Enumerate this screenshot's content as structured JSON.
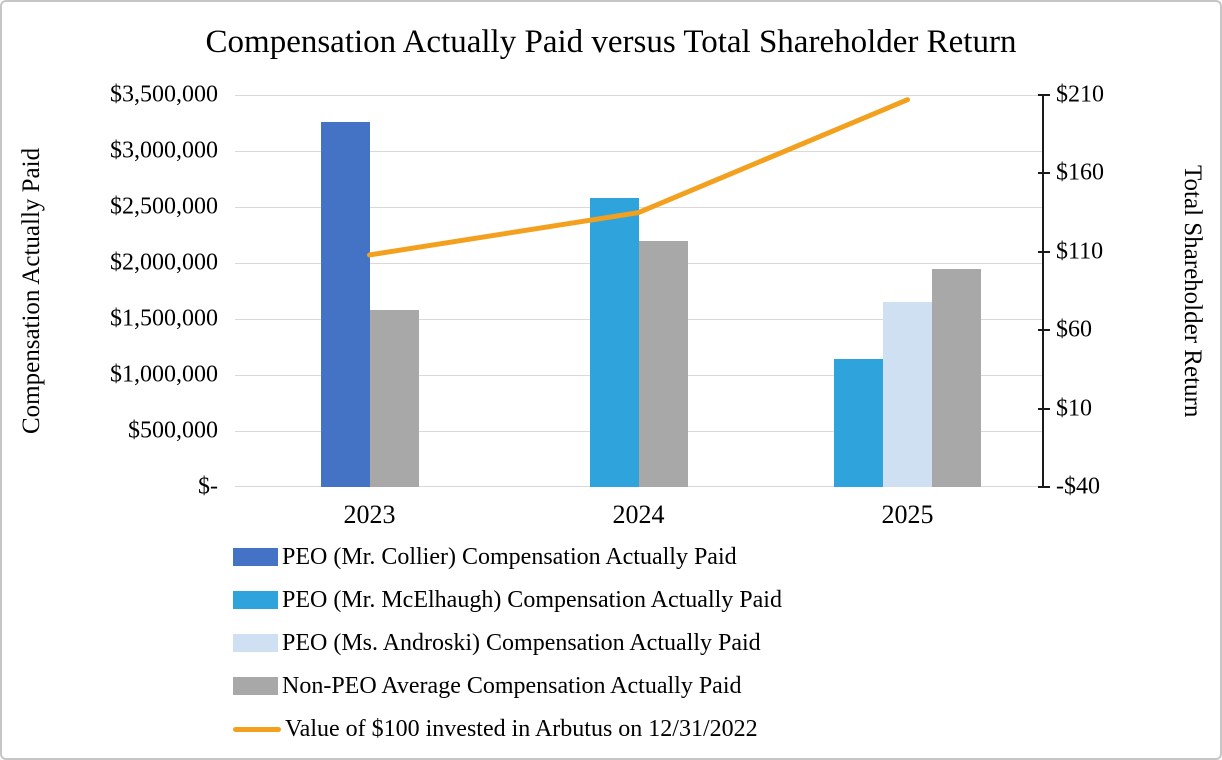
{
  "chart_data": {
    "type": "combo-bar-line",
    "title": "Compensation Actually Paid versus Total Shareholder Return",
    "categories": [
      "2023",
      "2024",
      "2025"
    ],
    "bar_series": [
      {
        "name": "PEO (Mr. Collier) Compensation Actually Paid",
        "color": "#4472c4",
        "values": [
          3260000,
          null,
          null
        ]
      },
      {
        "name": "PEO (Mr. McElhaugh) Compensation Actually Paid",
        "color": "#2fa3dc",
        "values": [
          null,
          2580000,
          1140000
        ]
      },
      {
        "name": "PEO (Ms. Androski) Compensation Actually Paid",
        "color": "#cee0f2",
        "values": [
          null,
          null,
          1650000
        ]
      },
      {
        "name": "Non-PEO Average Compensation Actually Paid",
        "color": "#a8a8a8",
        "values": [
          1580000,
          2200000,
          1950000
        ]
      }
    ],
    "line_series": {
      "name": "Value of $100 invested in Arbutus on 12/31/2022",
      "color": "#f3a01e",
      "values": [
        108,
        135,
        207
      ]
    },
    "left_axis": {
      "title": "Compensation Actually Paid",
      "min": 0,
      "max": 3500000,
      "ticks": [
        "$3,500,000",
        "$3,000,000",
        "$2,500,000",
        "$2,000,000",
        "$1,500,000",
        "$1,000,000",
        "$500,000",
        "$-"
      ]
    },
    "right_axis": {
      "title": "Total Shareholder Return",
      "min": -40,
      "max": 210,
      "ticks": [
        "$210",
        "$160",
        "$110",
        "$60",
        "$10",
        "-$40"
      ]
    },
    "grid": true,
    "legend_position": "bottom-left"
  }
}
